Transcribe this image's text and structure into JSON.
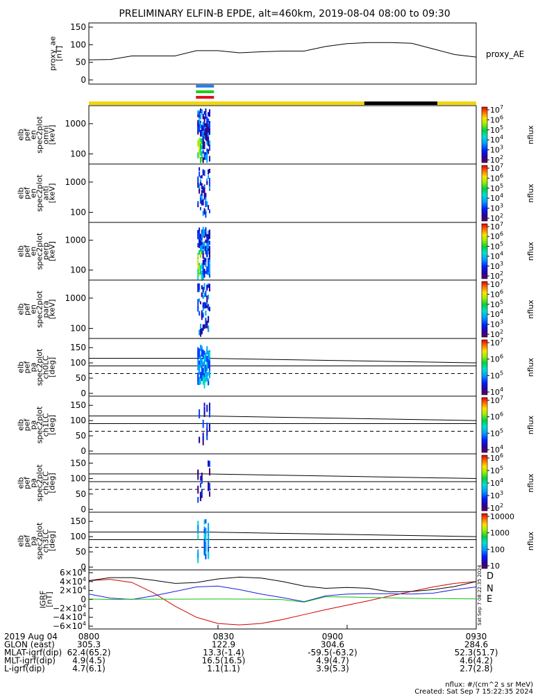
{
  "title": "PRELIMINARY ELFIN-B EPDE, alt=460km, 2019-08-04 08:00 to 09:30",
  "colors": {
    "day": "#f2d600",
    "night": "#000000",
    "bar_blue": "#2a7ff0",
    "bar_green": "#19d219",
    "bar_red": "#e0141e",
    "D": "#d00000",
    "N": "#1a1adc",
    "E": "#10c010"
  },
  "chart_data": [
    {
      "type": "line",
      "ylabel": [
        "proxy_ae",
        "[nT]"
      ],
      "yticks": [
        "150",
        "100",
        "50",
        "0"
      ],
      "ylim": [
        0,
        150
      ],
      "legend": "proxy_AE",
      "x_minutes": [
        0,
        5,
        10,
        15,
        20,
        25,
        30,
        35,
        40,
        45,
        50,
        55,
        60,
        65,
        70,
        75,
        80,
        85,
        90
      ],
      "values": [
        57,
        58,
        68,
        68,
        68,
        83,
        83,
        77,
        80,
        82,
        82,
        95,
        103,
        106,
        106,
        104,
        88,
        72,
        65
      ]
    },
    {
      "type": "bar",
      "name": "day/night indicator",
      "segments": [
        {
          "from": 0,
          "to": 64,
          "state": "day"
        },
        {
          "from": 64,
          "to": 81,
          "state": "night"
        },
        {
          "from": 81,
          "to": 90,
          "state": "day"
        }
      ]
    },
    {
      "type": "heatmap",
      "ylabel": [
        "elb",
        "pef",
        "en",
        "spec2plot",
        "omni",
        "[keV]"
      ],
      "yticks": [
        "1000",
        "100"
      ],
      "zlabel": "nflux",
      "zticks": [
        "10^7",
        "10^6",
        "10^5",
        "10^4",
        "10^3",
        "10^2"
      ]
    },
    {
      "type": "heatmap",
      "ylabel": [
        "elb",
        "pef",
        "en",
        "spec2plot",
        "anti",
        "[keV]"
      ],
      "yticks": [
        "1000",
        "100"
      ],
      "zlabel": "nflux",
      "zticks": [
        "10^7",
        "10^6",
        "10^5",
        "10^4",
        "10^3",
        "10^2"
      ]
    },
    {
      "type": "heatmap",
      "ylabel": [
        "elb",
        "pef",
        "en",
        "spec2plot",
        "perp",
        "[keV]"
      ],
      "yticks": [
        "1000",
        "100"
      ],
      "zlabel": "nflux",
      "zticks": [
        "10^7",
        "10^6",
        "10^5",
        "10^4",
        "10^3",
        "10^2"
      ]
    },
    {
      "type": "heatmap",
      "ylabel": [
        "elb",
        "pef",
        "en",
        "spec2plot",
        "para",
        "[keV]"
      ],
      "yticks": [
        "1000",
        "100"
      ],
      "zlabel": "nflux",
      "zticks": [
        "10^7",
        "10^6",
        "10^5",
        "10^4",
        "10^3",
        "10^2"
      ]
    },
    {
      "type": "heatmap",
      "ylabel": [
        "elb",
        "pef",
        "pa",
        "spec2plot",
        "ch0LC",
        "[deg]"
      ],
      "yticks": [
        "150",
        "100",
        "50",
        "0"
      ],
      "zlabel": "nflux",
      "zticks": [
        "10^7",
        "10^6",
        "10^5",
        "10^4"
      ]
    },
    {
      "type": "heatmap",
      "ylabel": [
        "elb",
        "pef",
        "pa",
        "spec2plot",
        "ch1LC",
        "[deg]"
      ],
      "yticks": [
        "150",
        "100",
        "50",
        "0"
      ],
      "zlabel": "nflux",
      "zticks": [
        "10^7",
        "10^6",
        "10^5",
        "10^4"
      ]
    },
    {
      "type": "heatmap",
      "ylabel": [
        "elb",
        "pef",
        "pa",
        "spec2plot",
        "ch2LC",
        "[deg]"
      ],
      "yticks": [
        "150",
        "100",
        "50",
        "0"
      ],
      "zlabel": "nflux",
      "zticks": [
        "10^6",
        "10^5",
        "10^4",
        "10^3",
        "10^2"
      ]
    },
    {
      "type": "heatmap",
      "ylabel": [
        "elb",
        "pef",
        "pa",
        "spec2plot",
        "ch3LC",
        "[deg]"
      ],
      "yticks": [
        "150",
        "100",
        "50",
        "0"
      ],
      "zlabel": "nflux",
      "zticks": [
        "10000",
        "1000",
        "100",
        "10"
      ]
    },
    {
      "type": "line",
      "ylabel": [
        "IGRF",
        "[nT]"
      ],
      "yticks": [
        "6×10^4",
        "4×10^4",
        "2×10^4",
        "0",
        "−2×10^4",
        "−4×10^4",
        "−6×10^4"
      ],
      "ylim": [
        -60000,
        60000
      ],
      "x_minutes": [
        0,
        5,
        10,
        15,
        20,
        25,
        30,
        35,
        40,
        45,
        50,
        55,
        60,
        65,
        70,
        75,
        80,
        85,
        90
      ],
      "series": [
        {
          "name": "D",
          "values": [
            42000,
            45000,
            38000,
            15000,
            -15000,
            -40000,
            -54000,
            -57000,
            -54000,
            -45000,
            -34000,
            -23000,
            -13000,
            -3000,
            8000,
            18000,
            28000,
            36000,
            40000
          ]
        },
        {
          "name": "N",
          "values": [
            12000,
            3000,
            0,
            8000,
            18000,
            28000,
            30000,
            22000,
            12000,
            4000,
            -5000,
            8000,
            12000,
            13000,
            13000,
            12000,
            14000,
            22000,
            28000
          ]
        },
        {
          "name": "E",
          "values": [
            1000,
            0,
            500,
            600,
            700,
            800,
            900,
            800,
            700,
            -500,
            -6000,
            6000,
            5500,
            4500,
            3500,
            2500,
            2000,
            1500,
            1200
          ]
        },
        {
          "name": "total",
          "values": [
            42000,
            49000,
            49000,
            43000,
            36000,
            38000,
            46000,
            50000,
            48000,
            40000,
            30000,
            25000,
            27000,
            25000,
            17000,
            18000,
            22000,
            29000,
            40000
          ]
        }
      ]
    }
  ],
  "heatmap_columns_minutes": [
    25.2,
    25.5,
    25.8,
    26.1,
    26.4,
    26.7,
    27.0,
    27.3,
    27.6,
    27.9
  ],
  "footer": {
    "rows": [
      {
        "label": "2019 Aug 04",
        "values": [
          "0800",
          "0830",
          "0900",
          "0930"
        ]
      },
      {
        "label": "GLON (east)",
        "values": [
          "305.3",
          "122.9",
          "304.6",
          "284.6"
        ]
      },
      {
        "label": "MLAT-igrf(dip)",
        "values": [
          "62.4(65.2)",
          "13.3(-1.4)",
          "-59.5(-63.2)",
          "52.3(51.7)"
        ]
      },
      {
        "label": "MLT-igrf(dip)",
        "values": [
          "4.9(4.5)",
          "16.5(16.5)",
          "4.9(4.7)",
          "4.6(4.2)"
        ]
      },
      {
        "label": "L-igrf(dip)",
        "values": [
          "4.7(6.1)",
          "1.1(1.1)",
          "3.9(5.3)",
          "2.7(2.8)"
        ]
      }
    ],
    "note1": "nflux: #/(cm^2 s sr MeV)",
    "note2": "Created: Sat Sep  7 15:22:35 2024",
    "side_stamp": "Sat Sep  7 08:22:35 2024"
  }
}
